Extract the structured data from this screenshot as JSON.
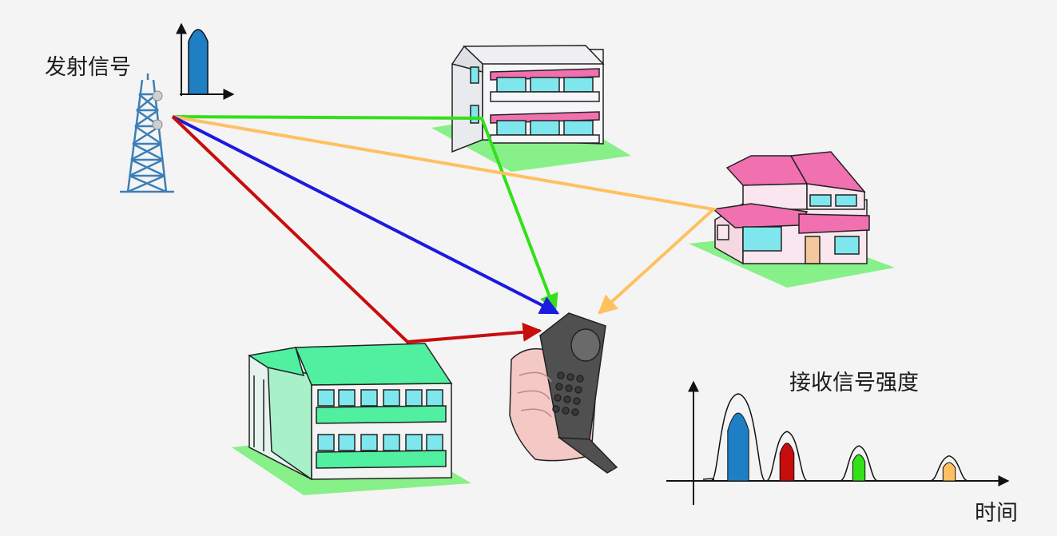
{
  "labels": {
    "transmit_signal": "发射信号",
    "received_strength": "接收信号强度",
    "time_axis": "时间"
  },
  "colors": {
    "background": "#f4f4f4",
    "path_green": "#33e01a",
    "path_orange": "#ffc060",
    "path_blue": "#1a1ae0",
    "path_red": "#c80d0d",
    "pulse_blue": "#1f7fc4",
    "building_green_roof": "#50f0a0",
    "house_pink_roof": "#f070b0",
    "window_cyan": "#7fe6ee",
    "lawn": "#88f088"
  },
  "received_pulses": [
    {
      "color": "blue",
      "relative_strength": 1.0
    },
    {
      "color": "red",
      "relative_strength": 0.55
    },
    {
      "color": "green",
      "relative_strength": 0.38
    },
    {
      "color": "orange",
      "relative_strength": 0.26
    }
  ]
}
